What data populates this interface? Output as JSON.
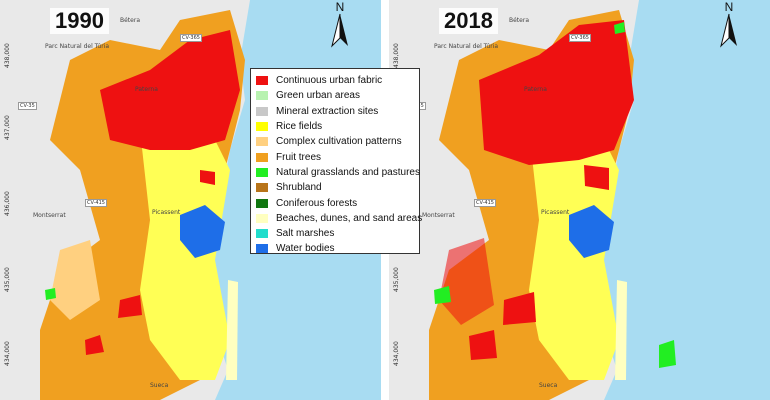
{
  "panels": [
    {
      "year": "1990",
      "north": "N"
    },
    {
      "year": "2018",
      "north": "N"
    }
  ],
  "coordinates": [
    "438,000",
    "437,000",
    "436,000",
    "435,000",
    "434,000"
  ],
  "places": {
    "betera": "Bétera",
    "parc_natural": "Parc Natural del Túria",
    "paterna": "Paterna",
    "picassent": "Picassent",
    "montserrat": "Montserrat",
    "sueca": "Sueca"
  },
  "roads": [
    "CV-365",
    "CV-35",
    "CV-415"
  ],
  "legend": [
    {
      "label": "Continuous urban fabric",
      "color": "#ee1111"
    },
    {
      "label": "Green urban areas",
      "color": "#b8f2b0"
    },
    {
      "label": "Mineral extraction sites",
      "color": "#c8c8c8"
    },
    {
      "label": "Rice fields",
      "color": "#ffff00"
    },
    {
      "label": "Complex cultivation patterns",
      "color": "#ffd080"
    },
    {
      "label": "Fruit trees",
      "color": "#f0a020"
    },
    {
      "label": "Natural grasslands and pastures",
      "color": "#22ee22"
    },
    {
      "label": "Shrubland",
      "color": "#b8741a"
    },
    {
      "label": "Coniferous forests",
      "color": "#117711"
    },
    {
      "label": "Beaches, dunes, and sand areas",
      "color": "#ffffc0"
    },
    {
      "label": "Salt marshes",
      "color": "#22ddcc"
    },
    {
      "label": "Water bodies",
      "color": "#1e6ee8"
    }
  ],
  "colors": {
    "sea": "#a8dcf2",
    "land_base": "#e9e9e9",
    "frame": "#555555"
  }
}
